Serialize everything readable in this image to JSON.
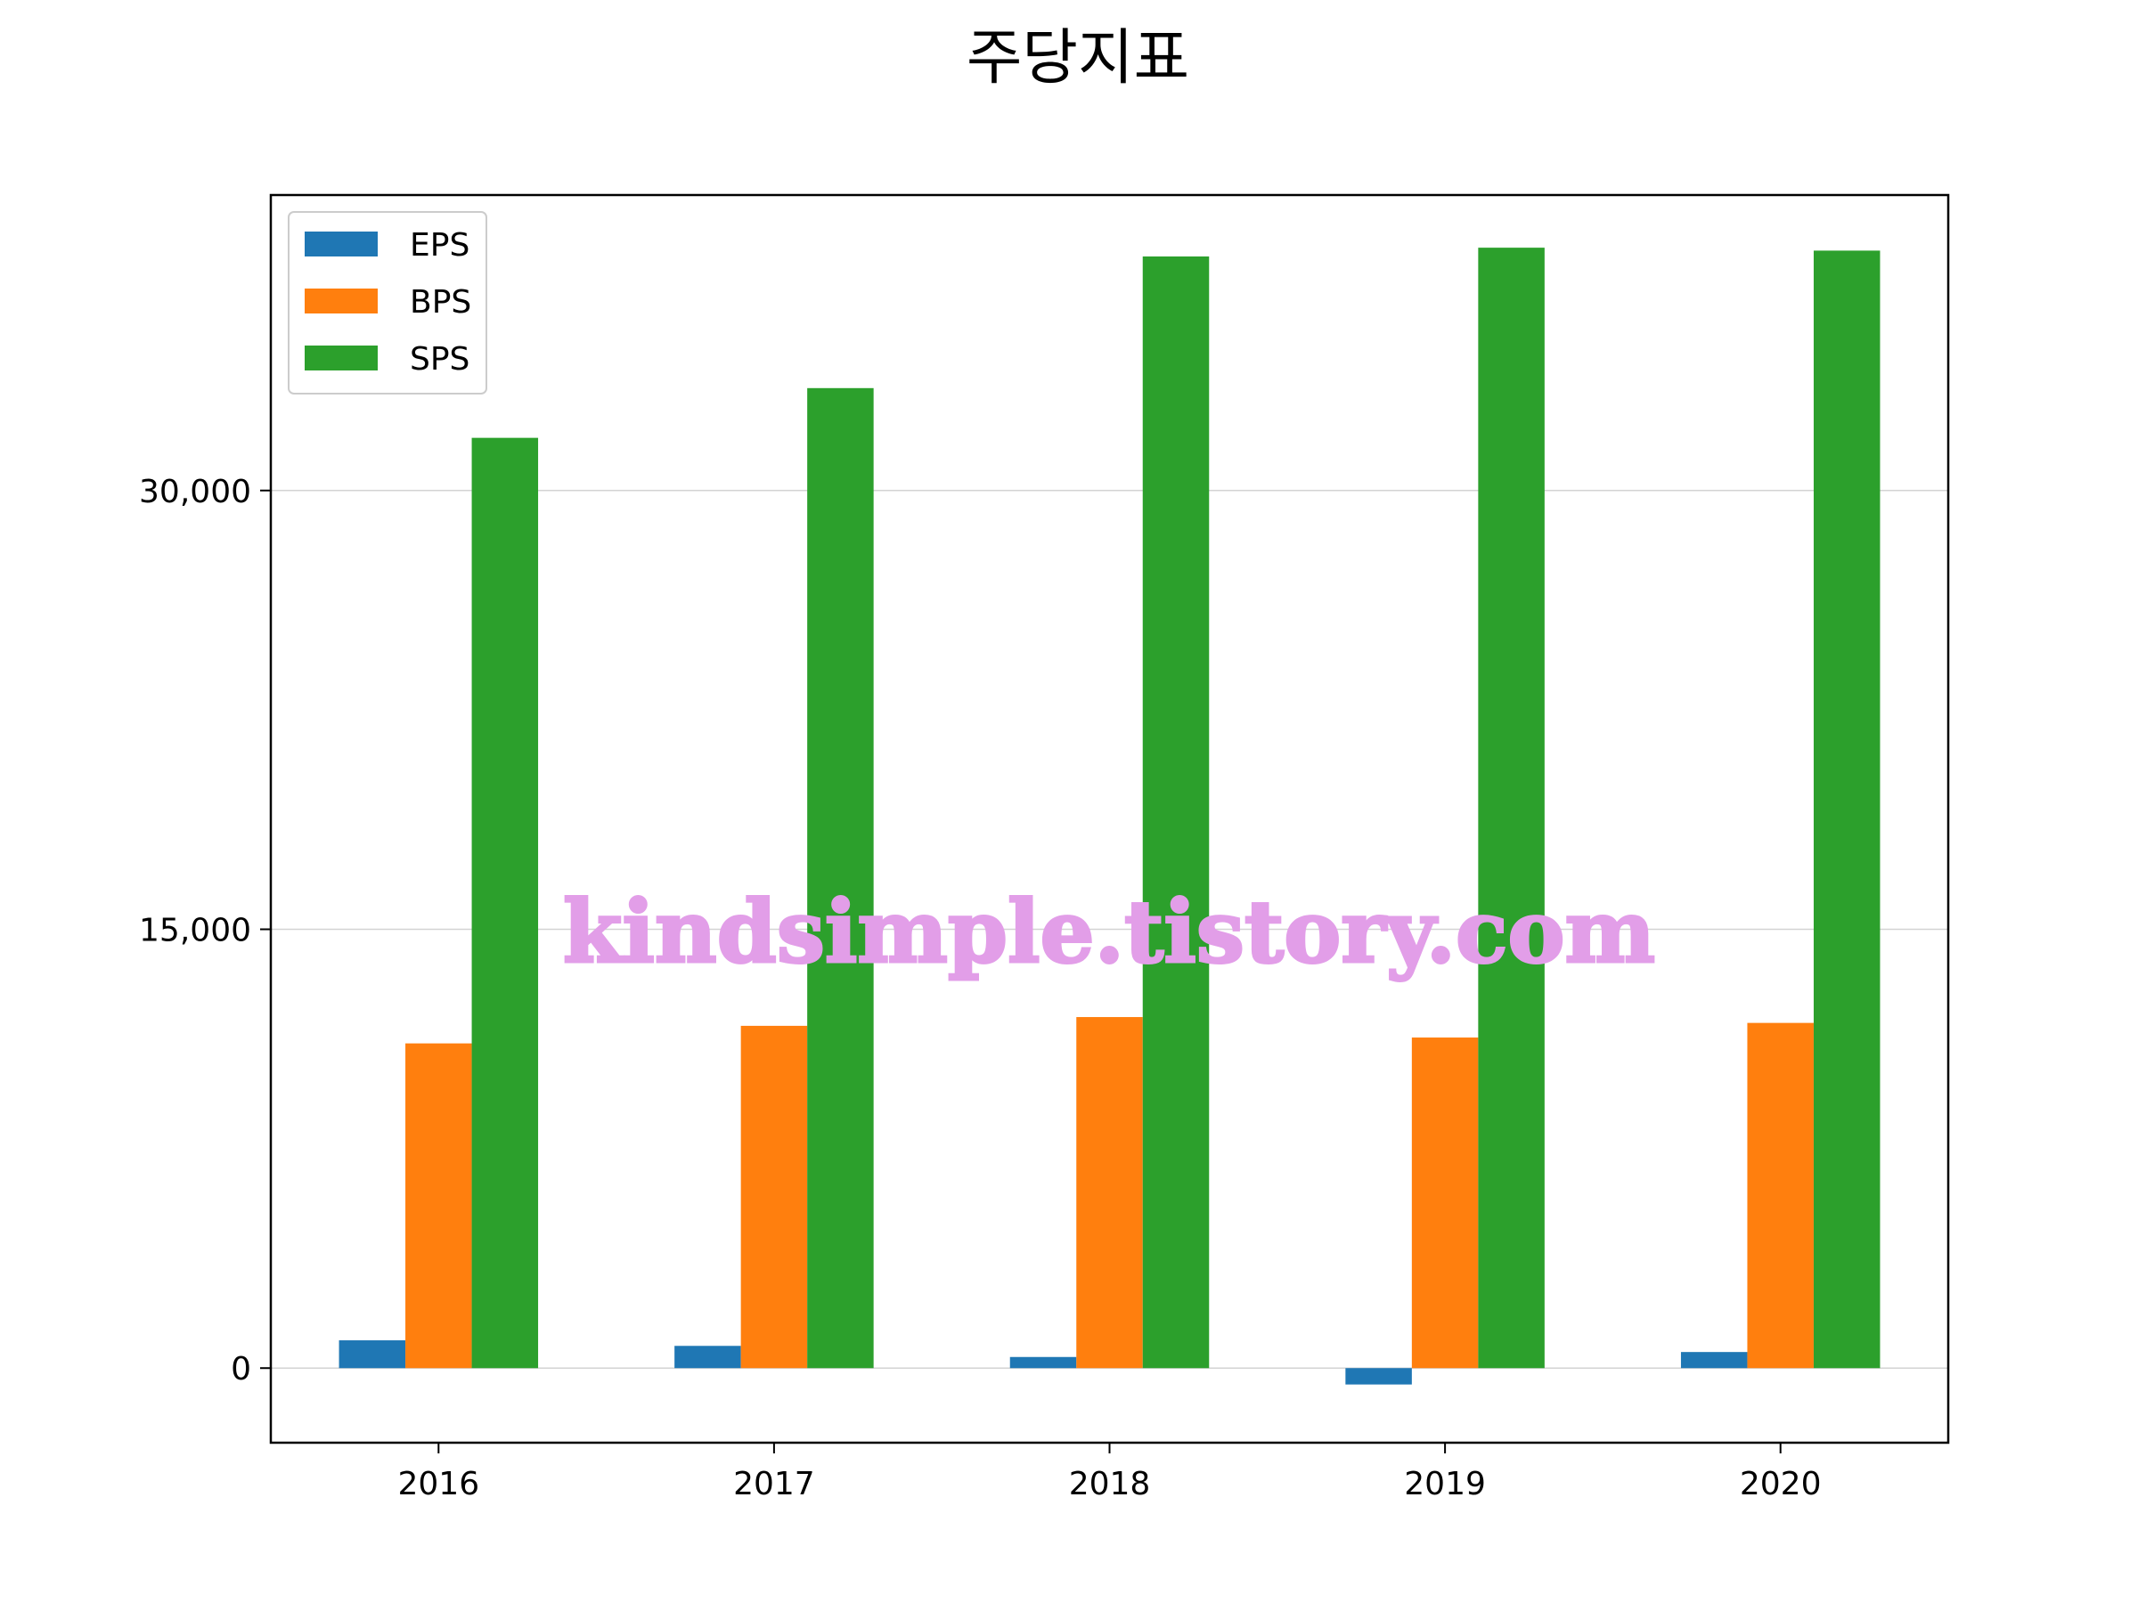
{
  "chart_data": {
    "type": "bar",
    "title": "주당지표",
    "xlabel": "",
    "ylabel": "",
    "categories": [
      "2016",
      "2017",
      "2018",
      "2019",
      "2020"
    ],
    "series": [
      {
        "name": "EPS",
        "color": "#1f77b4",
        "values": [
          950,
          760,
          380,
          -560,
          550
        ]
      },
      {
        "name": "BPS",
        "color": "#ff7f0e",
        "values": [
          11100,
          11700,
          12000,
          11300,
          11800
        ]
      },
      {
        "name": "SPS",
        "color": "#2ca02c",
        "values": [
          31800,
          33500,
          38000,
          38300,
          38200
        ]
      }
    ],
    "ylim": [
      -2550,
      40100
    ],
    "yticks": [
      0,
      15000,
      30000
    ],
    "ytick_labels": [
      "0",
      "15,000",
      "30,000"
    ],
    "grid": "horizontal",
    "legend_position": "top-left",
    "watermark": "kindsimple.tistory.com"
  }
}
